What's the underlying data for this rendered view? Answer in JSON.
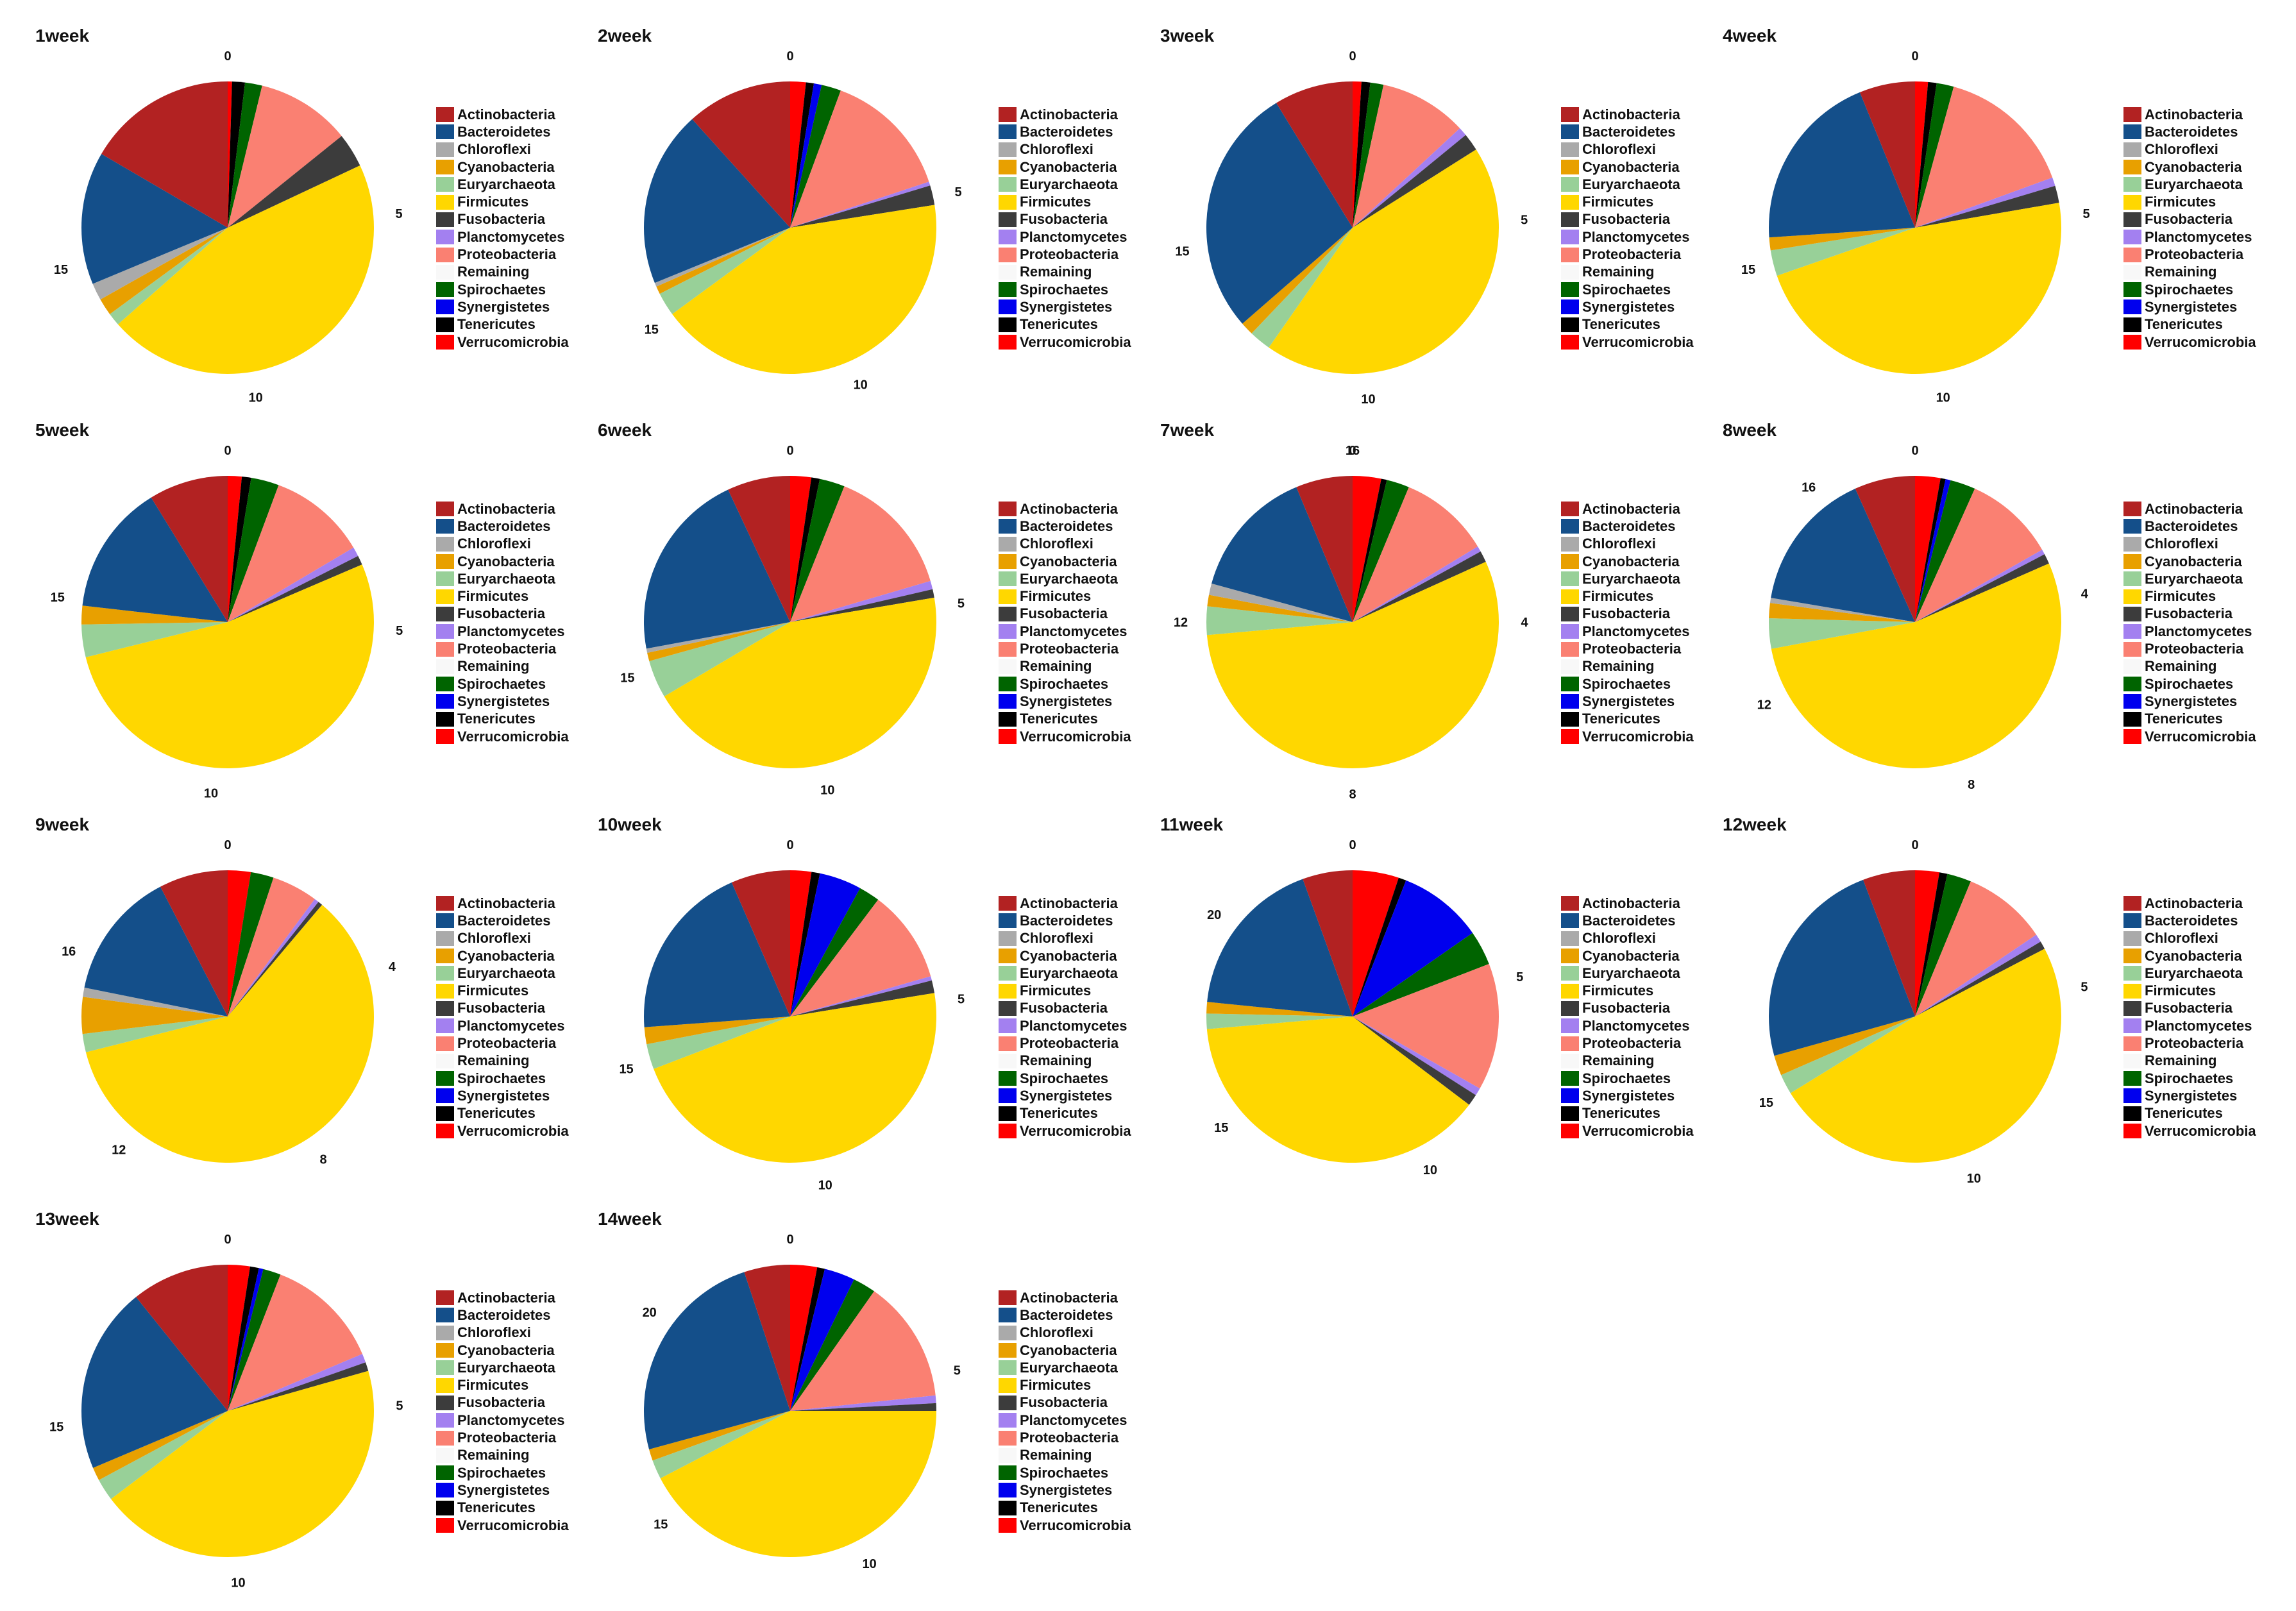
{
  "categories": [
    "Actinobacteria",
    "Bacteroidetes",
    "Chloroflexi",
    "Cyanobacteria",
    "Euryarchaeota",
    "Firmicutes",
    "Fusobacteria",
    "Planctomycetes",
    "Proteobacteria",
    "Remaining",
    "Spirochaetes",
    "Synergistetes",
    "Tenericutes",
    "Verrucomicrobia"
  ],
  "colors": {
    "Actinobacteria": "#b22222",
    "Bacteroidetes": "#144f8a",
    "Chloroflexi": "#aaaaaa",
    "Cyanobacteria": "#e8a000",
    "Euryarchaeota": "#98d098",
    "Firmicutes": "#ffd700",
    "Fusobacteria": "#3c3c3c",
    "Planctomycetes": "#a380f0",
    "Proteobacteria": "#fa8072",
    "Remaining": "#f8f8f8",
    "Spirochaetes": "#006400",
    "Synergistetes": "#0000ee",
    "Tenericutes": "#000000",
    "Verrucomicrobia": "#ff0000"
  },
  "chart_data": [
    {
      "type": "pie",
      "title": "1week",
      "labels": [
        "Verrucomicrobia",
        "Tenericutes",
        "Spirochaetes",
        "Proteobacteria",
        "Fusobacteria",
        "Firmicutes",
        "Euryarchaeota",
        "Cyanobacteria",
        "Chloroflexi",
        "Bacteroidetes",
        "Actinobacteria"
      ],
      "values": [
        0.1,
        0.3,
        0.4,
        2.2,
        0.8,
        9.6,
        0.3,
        0.4,
        0.4,
        3.1,
        3.5
      ],
      "tick_labels": [
        "0",
        "5",
        "10",
        "15"
      ]
    },
    {
      "type": "pie",
      "title": "2week",
      "labels": [
        "Verrucomicrobia",
        "Tenericutes",
        "Synergistetes",
        "Spirochaetes",
        "Proteobacteria",
        "Planctomycetes",
        "Fusobacteria",
        "Firmicutes",
        "Euryarchaeota",
        "Cyanobacteria",
        "Chloroflexi",
        "Bacteroidetes",
        "Actinobacteria"
      ],
      "values": [
        0.4,
        0.2,
        0.2,
        0.5,
        3.3,
        0.1,
        0.5,
        9.8,
        0.6,
        0.2,
        0.1,
        4.5,
        2.7
      ],
      "tick_labels": [
        "0",
        "5",
        "10",
        "15"
      ]
    },
    {
      "type": "pie",
      "title": "3week",
      "labels": [
        "Verrucomicrobia",
        "Tenericutes",
        "Spirochaetes",
        "Proteobacteria",
        "Planctomycetes",
        "Fusobacteria",
        "Firmicutes",
        "Euryarchaeota",
        "Cyanobacteria",
        "Bacteroidetes",
        "Actinobacteria"
      ],
      "values": [
        0.2,
        0.2,
        0.3,
        2.0,
        0.2,
        0.4,
        9.0,
        0.5,
        0.3,
        5.7,
        1.8
      ],
      "tick_labels": [
        "0",
        "5",
        "10",
        "15"
      ]
    },
    {
      "type": "pie",
      "title": "4week",
      "labels": [
        "Verrucomicrobia",
        "Tenericutes",
        "Spirochaetes",
        "Proteobacteria",
        "Planctomycetes",
        "Fusobacteria",
        "Firmicutes",
        "Euryarchaeota",
        "Cyanobacteria",
        "Bacteroidetes",
        "Actinobacteria"
      ],
      "values": [
        0.3,
        0.2,
        0.4,
        3.2,
        0.2,
        0.4,
        10.0,
        0.6,
        0.3,
        4.2,
        1.3
      ],
      "tick_labels": [
        "0",
        "5",
        "10",
        "15"
      ]
    },
    {
      "type": "pie",
      "title": "5week",
      "labels": [
        "Verrucomicrobia",
        "Tenericutes",
        "Spirochaetes",
        "Proteobacteria",
        "Planctomycetes",
        "Fusobacteria",
        "Firmicutes",
        "Euryarchaeota",
        "Cyanobacteria",
        "Bacteroidetes",
        "Actinobacteria"
      ],
      "values": [
        0.3,
        0.2,
        0.6,
        2.1,
        0.2,
        0.2,
        10.2,
        0.7,
        0.4,
        2.8,
        1.7
      ],
      "tick_labels": [
        "0",
        "5",
        "10",
        "15"
      ]
    },
    {
      "type": "pie",
      "title": "6week",
      "labels": [
        "Verrucomicrobia",
        "Tenericutes",
        "Spirochaetes",
        "Proteobacteria",
        "Planctomycetes",
        "Fusobacteria",
        "Firmicutes",
        "Euryarchaeota",
        "Cyanobacteria",
        "Chloroflexi",
        "Bacteroidetes",
        "Actinobacteria"
      ],
      "values": [
        0.5,
        0.2,
        0.6,
        3.1,
        0.2,
        0.2,
        9.5,
        0.9,
        0.2,
        0.1,
        4.5,
        1.5
      ],
      "tick_labels": [
        "0",
        "5",
        "10",
        "15"
      ]
    },
    {
      "type": "pie",
      "title": "7week",
      "labels": [
        "Verrucomicrobia",
        "Tenericutes",
        "Spirochaetes",
        "Proteobacteria",
        "Planctomycetes",
        "Fusobacteria",
        "Firmicutes",
        "Euryarchaeota",
        "Cyanobacteria",
        "Chloroflexi",
        "Bacteroidetes",
        "Actinobacteria"
      ],
      "values": [
        0.5,
        0.1,
        0.4,
        1.6,
        0.1,
        0.2,
        8.8,
        0.5,
        0.2,
        0.2,
        2.3,
        1.0
      ],
      "tick_labels": [
        "0",
        "4",
        "8",
        "12",
        "16"
      ]
    },
    {
      "type": "pie",
      "title": "8week",
      "labels": [
        "Verrucomicrobia",
        "Tenericutes",
        "Synergistetes",
        "Spirochaetes",
        "Proteobacteria",
        "Planctomycetes",
        "Fusobacteria",
        "Firmicutes",
        "Euryarchaeota",
        "Cyanobacteria",
        "Chloroflexi",
        "Bacteroidetes",
        "Actinobacteria"
      ],
      "values": [
        0.5,
        0.1,
        0.1,
        0.5,
        1.8,
        0.1,
        0.2,
        9.6,
        0.6,
        0.3,
        0.1,
        2.8,
        1.2
      ],
      "tick_labels": [
        "0",
        "4",
        "8",
        "12",
        "16"
      ]
    },
    {
      "type": "pie",
      "title": "9week",
      "labels": [
        "Verrucomicrobia",
        "Spirochaetes",
        "Proteobacteria",
        "Planctomycetes",
        "Fusobacteria",
        "Firmicutes",
        "Euryarchaeota",
        "Cyanobacteria",
        "Chloroflexi",
        "Bacteroidetes",
        "Actinobacteria"
      ],
      "values": [
        0.5,
        0.5,
        1.0,
        0.1,
        0.1,
        11.8,
        0.4,
        0.8,
        0.2,
        2.8,
        1.5
      ],
      "tick_labels": [
        "0",
        "4",
        "8",
        "12",
        "16"
      ]
    },
    {
      "type": "pie",
      "title": "10week",
      "labels": [
        "Verrucomicrobia",
        "Tenericutes",
        "Synergistetes",
        "Spirochaetes",
        "Proteobacteria",
        "Planctomycetes",
        "Fusobacteria",
        "Firmicutes",
        "Euryarchaeota",
        "Cyanobacteria",
        "Bacteroidetes",
        "Actinobacteria"
      ],
      "values": [
        0.5,
        0.2,
        1.0,
        0.5,
        2.2,
        0.1,
        0.3,
        10.0,
        0.6,
        0.4,
        4.2,
        1.4
      ],
      "tick_labels": [
        "0",
        "5",
        "10",
        "15"
      ]
    },
    {
      "type": "pie",
      "title": "11week",
      "labels": [
        "Verrucomicrobia",
        "Tenericutes",
        "Synergistetes",
        "Spirochaetes",
        "Proteobacteria",
        "Planctomycetes",
        "Fusobacteria",
        "Firmicutes",
        "Euryarchaeota",
        "Cyanobacteria",
        "Bacteroidetes",
        "Actinobacteria"
      ],
      "values": [
        1.2,
        0.2,
        2.2,
        0.9,
        3.3,
        0.2,
        0.3,
        9.0,
        0.4,
        0.3,
        4.2,
        1.3
      ],
      "tick_labels": [
        "0",
        "5",
        "10",
        "15",
        "20"
      ]
    },
    {
      "type": "pie",
      "title": "12week",
      "labels": [
        "Verrucomicrobia",
        "Tenericutes",
        "Spirochaetes",
        "Proteobacteria",
        "Planctomycetes",
        "Fusobacteria",
        "Firmicutes",
        "Euryarchaeota",
        "Cyanobacteria",
        "Bacteroidetes",
        "Actinobacteria"
      ],
      "values": [
        0.6,
        0.2,
        0.6,
        2.1,
        0.2,
        0.2,
        11.0,
        0.5,
        0.5,
        5.3,
        1.3
      ],
      "tick_labels": [
        "0",
        "5",
        "10",
        "15"
      ]
    },
    {
      "type": "pie",
      "title": "13week",
      "labels": [
        "Verrucomicrobia",
        "Tenericutes",
        "Synergistetes",
        "Spirochaetes",
        "Proteobacteria",
        "Planctomycetes",
        "Fusobacteria",
        "Firmicutes",
        "Euryarchaeota",
        "Cyanobacteria",
        "Bacteroidetes",
        "Actinobacteria"
      ],
      "values": [
        0.5,
        0.2,
        0.1,
        0.4,
        2.6,
        0.2,
        0.2,
        9.0,
        0.5,
        0.3,
        4.2,
        2.2
      ],
      "tick_labels": [
        "0",
        "5",
        "10",
        "15"
      ]
    },
    {
      "type": "pie",
      "title": "14week",
      "labels": [
        "Verrucomicrobia",
        "Tenericutes",
        "Synergistetes",
        "Spirochaetes",
        "Proteobacteria",
        "Planctomycetes",
        "Fusobacteria",
        "Firmicutes",
        "Euryarchaeota",
        "Cyanobacteria",
        "Bacteroidetes",
        "Actinobacteria"
      ],
      "values": [
        0.7,
        0.2,
        0.8,
        0.6,
        3.2,
        0.2,
        0.2,
        10.0,
        0.5,
        0.3,
        5.7,
        1.2
      ],
      "tick_labels": [
        "0",
        "5",
        "10",
        "15",
        "20"
      ]
    }
  ]
}
